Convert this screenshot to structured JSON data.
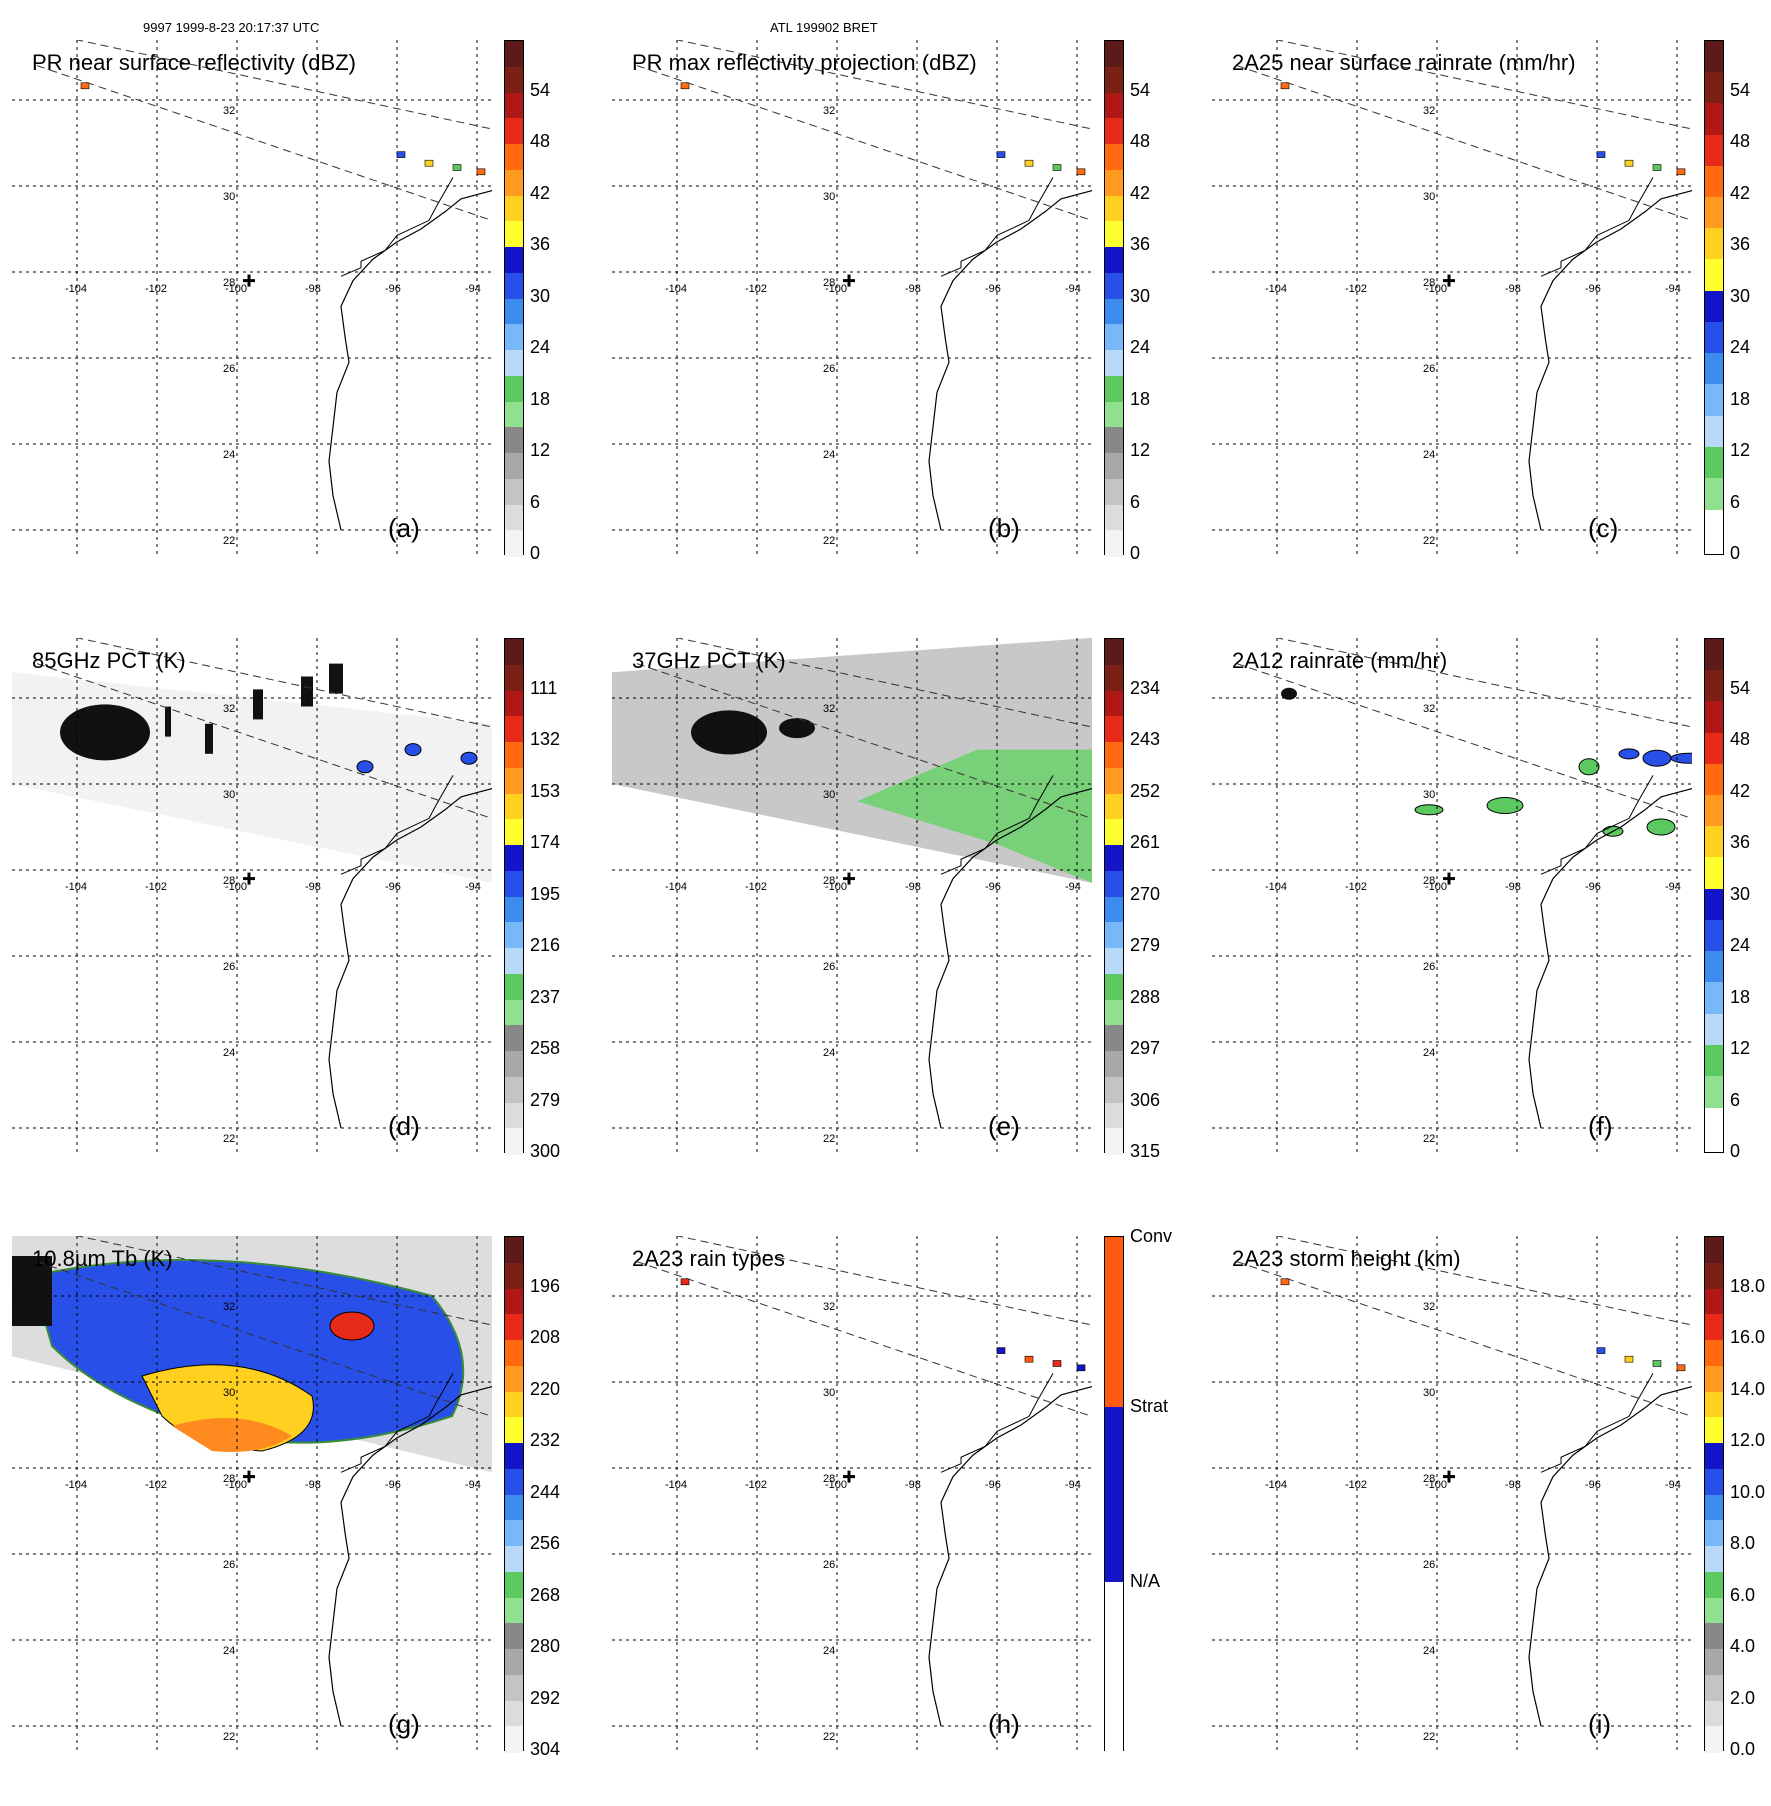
{
  "header": {
    "left": "9997 1999-8-23 20:17:37 UTC",
    "center": "ATL 199902 BRET"
  },
  "grid": {
    "lat_labels": [
      "32",
      "30",
      "28",
      "26",
      "24",
      "22"
    ],
    "lon_labels": [
      "-104",
      "-102",
      "-100",
      "-98",
      "-96",
      "-94"
    ]
  },
  "panels": [
    {
      "id": "a",
      "title": "PR near surface reflectivity (dBZ)",
      "label": "(a)",
      "scale": "dbz",
      "ticks": [
        "54",
        "48",
        "42",
        "36",
        "30",
        "24",
        "18",
        "12",
        "6",
        "0"
      ]
    },
    {
      "id": "b",
      "title": "PR max reflectivity projection (dBZ)",
      "label": "(b)",
      "scale": "dbz",
      "ticks": [
        "54",
        "48",
        "42",
        "36",
        "30",
        "24",
        "18",
        "12",
        "6",
        "0"
      ]
    },
    {
      "id": "c",
      "title": "2A25 near surface rainrate (mm/hr)",
      "label": "(c)",
      "scale": "rain",
      "ticks": [
        "54",
        "48",
        "42",
        "36",
        "30",
        "24",
        "18",
        "12",
        "6",
        "0"
      ]
    },
    {
      "id": "d",
      "title": "85GHz PCT (K)",
      "label": "(d)",
      "scale": "dbz",
      "ticks": [
        "111",
        "132",
        "153",
        "174",
        "195",
        "216",
        "237",
        "258",
        "279",
        "300"
      ]
    },
    {
      "id": "e",
      "title": "37GHz PCT (K)",
      "label": "(e)",
      "scale": "dbz",
      "ticks": [
        "234",
        "243",
        "252",
        "261",
        "270",
        "279",
        "288",
        "297",
        "306",
        "315"
      ]
    },
    {
      "id": "f",
      "title": "2A12 rainrate (mm/hr)",
      "label": "(f)",
      "scale": "rain",
      "ticks": [
        "54",
        "48",
        "42",
        "36",
        "30",
        "24",
        "18",
        "12",
        "6",
        "0"
      ]
    },
    {
      "id": "g",
      "title": "10.8µm Tb (K)",
      "label": "(g)",
      "scale": "dbz",
      "ticks": [
        "196",
        "208",
        "220",
        "232",
        "244",
        "256",
        "268",
        "280",
        "292",
        "304"
      ]
    },
    {
      "id": "h",
      "title": "2A23 rain types",
      "label": "(h)",
      "scale": "types",
      "ticks": [
        "Conv",
        "Strat",
        "N/A"
      ]
    },
    {
      "id": "i",
      "title": "2A23 storm height (km)",
      "label": "(i)",
      "scale": "dbz",
      "ticks": [
        "18.0",
        "16.0",
        "14.0",
        "12.0",
        "10.0",
        "8.0",
        "6.0",
        "4.0",
        "2.0",
        "0.0"
      ]
    }
  ],
  "colors": {
    "dbz": [
      "#5c1a1a",
      "#7a2015",
      "#b01818",
      "#e82a18",
      "#ff6a10",
      "#ff9a20",
      "#ffd020",
      "#ffff30",
      "#1414c8",
      "#2850e8",
      "#3c8cf0",
      "#78b8f8",
      "#b8d8f8",
      "#5cc860",
      "#90e090",
      "#888888",
      "#a8a8a8",
      "#c4c4c4",
      "#dcdcdc",
      "#f4f4f4"
    ],
    "rain": [
      "#5c1a1a",
      "#7a2015",
      "#b01818",
      "#e82a18",
      "#ff6a10",
      "#ff9a20",
      "#ffd020",
      "#ffff30",
      "#1414c8",
      "#2850e8",
      "#3c8cf0",
      "#78b8f8",
      "#b8d8f8",
      "#5cc860",
      "#90e090"
    ],
    "types": [
      "#ff5a10",
      "#1414c8",
      "#ffffff"
    ],
    "coast": "#000000",
    "grid": "#000000"
  }
}
